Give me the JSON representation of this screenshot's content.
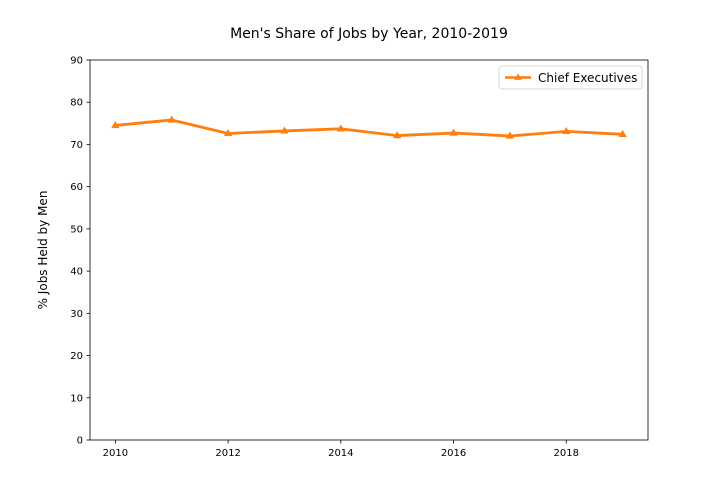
{
  "chart_data": {
    "type": "line",
    "title": "Men's Share of Jobs by Year, 2010-2019",
    "xlabel": "",
    "ylabel": "% Jobs Held by Men",
    "xlim": [
      2009.55,
      2019.45
    ],
    "ylim": [
      0,
      90
    ],
    "x_ticks": [
      2010,
      2012,
      2014,
      2016,
      2018
    ],
    "x_tick_labels": [
      "2010",
      "2012",
      "2014",
      "2016",
      "2018"
    ],
    "y_ticks": [
      0,
      10,
      20,
      30,
      40,
      50,
      60,
      70,
      80,
      90
    ],
    "y_tick_labels": [
      "0",
      "10",
      "20",
      "30",
      "40",
      "50",
      "60",
      "70",
      "80",
      "90"
    ],
    "grid": false,
    "legend_position": "top-right",
    "series": [
      {
        "name": "Chief Executives",
        "color": "#ff7f0e",
        "marker": "triangle-up",
        "x": [
          2010,
          2011,
          2012,
          2013,
          2014,
          2015,
          2016,
          2017,
          2018,
          2019
        ],
        "y": [
          74.5,
          75.8,
          72.6,
          73.2,
          73.7,
          72.1,
          72.7,
          72.0,
          73.1,
          72.4
        ]
      }
    ]
  }
}
